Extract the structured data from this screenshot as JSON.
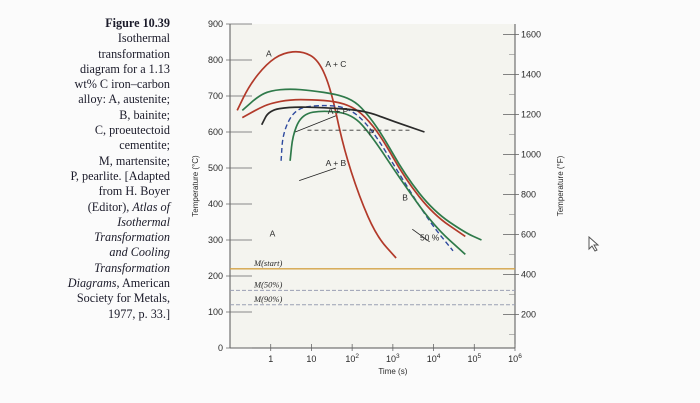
{
  "caption": {
    "figure": "Figure 10.39",
    "lines": [
      "Isothermal",
      "transformation",
      "diagram for a 1.13",
      "wt% C iron–carbon",
      "alloy: A, austenite;",
      "B, bainite;",
      "C, proeutectoid",
      "cementite;",
      "M, martensite;",
      "P, pearlite. [Adapted",
      "from H. Boyer",
      "(Editor), Atlas of",
      "Isothermal",
      "Transformation",
      "and Cooling",
      "Transformation",
      "Diagrams, American",
      "Society for Metals,",
      "1977, p. 33.]"
    ]
  },
  "chart_data": {
    "type": "line",
    "xlabel": "Time (s)",
    "ylabel": "Temperature (°C)",
    "y2label": "Temperature (°F)",
    "xscale": "log",
    "xlim": [
      0.1,
      1000000
    ],
    "ylim": [
      0,
      900
    ],
    "x_ticks": [
      {
        "value": 1,
        "label": "1"
      },
      {
        "value": 10,
        "label": "10"
      },
      {
        "value": 100,
        "label": "10",
        "sup": "2"
      },
      {
        "value": 1000,
        "label": "10",
        "sup": "3"
      },
      {
        "value": 10000,
        "label": "10",
        "sup": "4"
      },
      {
        "value": 100000,
        "label": "10",
        "sup": "5"
      },
      {
        "value": 1000000,
        "label": "10",
        "sup": "6"
      }
    ],
    "y_ticks": [
      0,
      100,
      200,
      300,
      400,
      500,
      600,
      700,
      800,
      900
    ],
    "y2_ticks": [
      {
        "value": 200,
        "label": "200"
      },
      {
        "value": 400,
        "label": "400"
      },
      {
        "value": 600,
        "label": "600"
      },
      {
        "value": 800,
        "label": "800"
      },
      {
        "value": 1000,
        "label": "1000"
      },
      {
        "value": 1200,
        "label": "1200"
      },
      {
        "value": 1400,
        "label": "1400"
      },
      {
        "value": 1600,
        "label": "1600"
      }
    ],
    "series": [
      {
        "style": "solid",
        "color": "#b23a2a",
        "x": [
          0.15,
          0.3,
          0.8,
          2,
          6,
          15,
          30,
          60,
          150,
          400,
          1200
        ],
        "y": [
          660,
          730,
          790,
          820,
          825,
          800,
          720,
          560,
          420,
          310,
          250
        ]
      },
      {
        "style": "solid",
        "color": "#2f7a4a",
        "x": [
          0.2,
          0.5,
          1,
          3,
          10,
          40,
          100,
          200,
          500,
          2000,
          10000,
          60000,
          150000
        ],
        "y": [
          660,
          700,
          715,
          720,
          715,
          705,
          690,
          660,
          600,
          480,
          380,
          320,
          300
        ]
      },
      {
        "style": "solid",
        "color": "#b23a2a",
        "x": [
          0.2,
          0.5,
          1,
          3,
          10,
          40,
          100,
          200,
          500,
          2000,
          10000,
          60000
        ],
        "y": [
          640,
          665,
          680,
          690,
          690,
          685,
          670,
          645,
          590,
          470,
          370,
          310
        ]
      },
      {
        "style": "dashed",
        "color": "#2e4a9e",
        "x": [
          1.8,
          2,
          4,
          15,
          80,
          300,
          1500,
          8000,
          30000
        ],
        "y": [
          520,
          600,
          665,
          675,
          670,
          610,
          480,
          350,
          270
        ]
      },
      {
        "style": "solid",
        "color": "#2f7a4a",
        "x": [
          3,
          3.5,
          6,
          20,
          100,
          300,
          1500,
          10000,
          60000
        ],
        "y": [
          520,
          595,
          650,
          660,
          650,
          590,
          470,
          340,
          260
        ]
      },
      {
        "style": "solid",
        "color": "#2a2a2a",
        "x": [
          0.6,
          0.9,
          3,
          20,
          200,
          1000,
          6000
        ],
        "y": [
          620,
          660,
          670,
          668,
          660,
          630,
          600
        ]
      }
    ],
    "horizontal_lines": [
      {
        "name": "M(start)",
        "y": 220,
        "color": "#d4a347"
      },
      {
        "name": "M(50%)",
        "y": 160,
        "color": "#9aa0b4"
      },
      {
        "name": "M(90%)",
        "y": 120,
        "color": "#9aa0b4"
      }
    ],
    "region_labels": [
      "A",
      "A + C",
      "A + P",
      "P",
      "A + B",
      "B",
      "A",
      "50 %"
    ],
    "grid": false
  }
}
